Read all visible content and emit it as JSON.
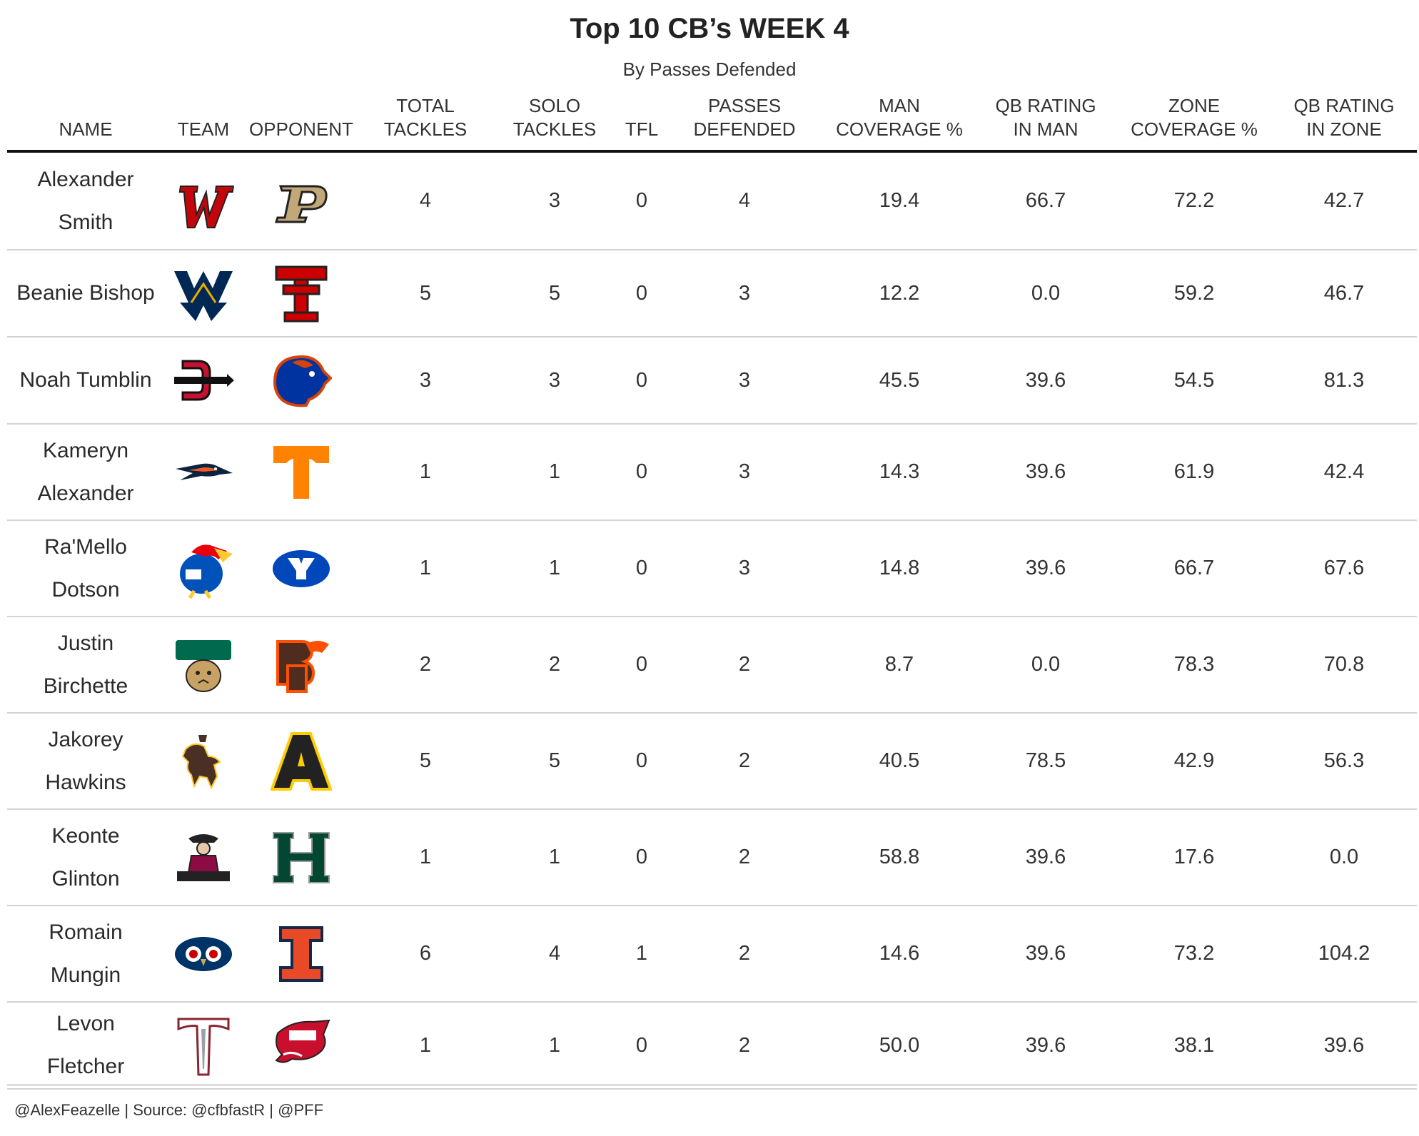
{
  "title": "Top 10 CB’s WEEK 4",
  "subtitle": "By Passes Defended",
  "footer": "@AlexFeazelle | Source: @cfbfastR | @PFF",
  "columns": [
    {
      "key": "name",
      "label": "NAME"
    },
    {
      "key": "team",
      "label": "TEAM"
    },
    {
      "key": "opponent",
      "label": "OPPONENT"
    },
    {
      "key": "total_tackles",
      "label": "TOTAL\nTACKLES"
    },
    {
      "key": "solo_tackles",
      "label": "SOLO\nTACKLES"
    },
    {
      "key": "tfl",
      "label": "TFL"
    },
    {
      "key": "passes_defended",
      "label": "PASSES\nDEFENDED"
    },
    {
      "key": "man_coverage",
      "label": "MAN\nCOVERAGE %"
    },
    {
      "key": "qb_rating_man",
      "label": "QB RATING\nIN MAN"
    },
    {
      "key": "zone_coverage",
      "label": "ZONE\nCOVERAGE %"
    },
    {
      "key": "qb_rating_zone",
      "label": "QB RATING\nIN ZONE"
    }
  ],
  "chart_data": {
    "type": "table",
    "title": "Top 10 CB’s WEEK 4",
    "subtitle": "By Passes Defended",
    "rows": [
      {
        "name": "Alexander Smith",
        "team_logo": "wisconsin-logo-icon",
        "opponent_logo": "purdue-logo-icon",
        "total_tackles": "4",
        "solo_tackles": "3",
        "tfl": "0",
        "passes_defended": "4",
        "man_coverage": "19.4",
        "qb_rating_man": "66.7",
        "zone_coverage": "72.2",
        "qb_rating_zone": "42.7"
      },
      {
        "name": "Beanie Bishop",
        "team_logo": "west-virginia-logo-icon",
        "opponent_logo": "texas-tech-logo-icon",
        "total_tackles": "5",
        "solo_tackles": "5",
        "tfl": "0",
        "passes_defended": "3",
        "man_coverage": "12.2",
        "qb_rating_man": "0.0",
        "zone_coverage": "59.2",
        "qb_rating_zone": "46.7"
      },
      {
        "name": "Noah Tumblin",
        "team_logo": "san-diego-state-logo-icon",
        "opponent_logo": "boise-state-logo-icon",
        "total_tackles": "3",
        "solo_tackles": "3",
        "tfl": "0",
        "passes_defended": "3",
        "man_coverage": "45.5",
        "qb_rating_man": "39.6",
        "zone_coverage": "54.5",
        "qb_rating_zone": "81.3"
      },
      {
        "name": "Kameryn Alexander",
        "team_logo": "utsa-logo-icon",
        "opponent_logo": "tennessee-logo-icon",
        "total_tackles": "1",
        "solo_tackles": "1",
        "tfl": "0",
        "passes_defended": "3",
        "man_coverage": "14.3",
        "qb_rating_man": "39.6",
        "zone_coverage": "61.9",
        "qb_rating_zone": "42.4"
      },
      {
        "name": "Ra'Mello Dotson",
        "team_logo": "kansas-logo-icon",
        "opponent_logo": "byu-logo-icon",
        "total_tackles": "1",
        "solo_tackles": "1",
        "tfl": "0",
        "passes_defended": "3",
        "man_coverage": "14.8",
        "qb_rating_man": "39.6",
        "zone_coverage": "66.7",
        "qb_rating_zone": "67.6"
      },
      {
        "name": "Justin Birchette",
        "team_logo": "ohio-logo-icon",
        "opponent_logo": "bowling-green-logo-icon",
        "total_tackles": "2",
        "solo_tackles": "2",
        "tfl": "0",
        "passes_defended": "2",
        "man_coverage": "8.7",
        "qb_rating_man": "0.0",
        "zone_coverage": "78.3",
        "qb_rating_zone": "70.8"
      },
      {
        "name": "Jakorey Hawkins",
        "team_logo": "wyoming-logo-icon",
        "opponent_logo": "appalachian-state-logo-icon",
        "total_tackles": "5",
        "solo_tackles": "5",
        "tfl": "0",
        "passes_defended": "2",
        "man_coverage": "40.5",
        "qb_rating_man": "78.5",
        "zone_coverage": "42.9",
        "qb_rating_zone": "56.3"
      },
      {
        "name": "Keonte Glinton",
        "team_logo": "new-mexico-state-logo-icon",
        "opponent_logo": "hawaii-logo-icon",
        "total_tackles": "1",
        "solo_tackles": "1",
        "tfl": "0",
        "passes_defended": "2",
        "man_coverage": "58.8",
        "qb_rating_man": "39.6",
        "zone_coverage": "17.6",
        "qb_rating_zone": "0.0"
      },
      {
        "name": "Romain Mungin",
        "team_logo": "fau-logo-icon",
        "opponent_logo": "illinois-logo-icon",
        "total_tackles": "6",
        "solo_tackles": "4",
        "tfl": "1",
        "passes_defended": "2",
        "man_coverage": "14.6",
        "qb_rating_man": "39.6",
        "zone_coverage": "73.2",
        "qb_rating_zone": "104.2"
      },
      {
        "name": "Levon Fletcher",
        "team_logo": "troy-logo-icon",
        "opponent_logo": "western-kentucky-logo-icon",
        "total_tackles": "1",
        "solo_tackles": "1",
        "tfl": "0",
        "passes_defended": "2",
        "man_coverage": "50.0",
        "qb_rating_man": "39.6",
        "zone_coverage": "38.1",
        "qb_rating_zone": "39.6"
      }
    ]
  }
}
